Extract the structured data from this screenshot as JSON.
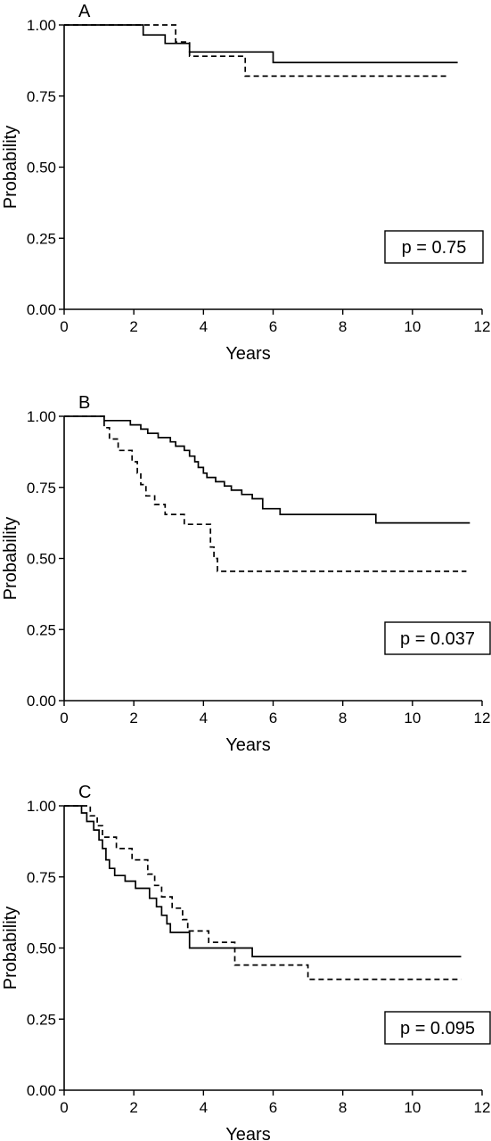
{
  "chart_data": [
    {
      "type": "line",
      "subtype": "step",
      "panel_label": "A",
      "xlabel": "Years",
      "ylabel": "Probability",
      "xlim": [
        0,
        12
      ],
      "ylim": [
        0,
        1
      ],
      "xticks": [
        "0",
        "2",
        "4",
        "6",
        "8",
        "10",
        "12"
      ],
      "yticks": [
        "0.00",
        "0.25",
        "0.50",
        "0.75",
        "1.00"
      ],
      "annotation": "p = 0.75",
      "annotation_placement": "bottom-right",
      "grid": false,
      "series": [
        {
          "line_style": "solid",
          "x": [
            0,
            2.27,
            2.9,
            3.6,
            6.0,
            11.3
          ],
          "y": [
            1.0,
            0.965,
            0.935,
            0.905,
            0.868,
            0.868
          ]
        },
        {
          "line_style": "dashed",
          "x": [
            0,
            3.2,
            3.6,
            5.2,
            11.0
          ],
          "y": [
            1.0,
            0.94,
            0.89,
            0.82,
            0.82
          ]
        }
      ]
    },
    {
      "type": "line",
      "subtype": "step",
      "panel_label": "B",
      "xlabel": "Years",
      "ylabel": "Probability",
      "xlim": [
        0,
        12
      ],
      "ylim": [
        0,
        1
      ],
      "xticks": [
        "0",
        "2",
        "4",
        "6",
        "8",
        "10",
        "12"
      ],
      "yticks": [
        "0.00",
        "0.25",
        "0.50",
        "0.75",
        "1.00"
      ],
      "annotation": "p = 0.037",
      "annotation_placement": "bottom-right",
      "grid": false,
      "series": [
        {
          "line_style": "solid",
          "x": [
            0,
            1.15,
            1.9,
            2.2,
            2.4,
            2.7,
            3.05,
            3.2,
            3.45,
            3.6,
            3.75,
            3.85,
            4.0,
            4.1,
            4.35,
            4.6,
            4.8,
            5.1,
            5.4,
            5.7,
            6.2,
            8.95,
            11.65
          ],
          "y": [
            1.0,
            0.985,
            0.97,
            0.955,
            0.94,
            0.925,
            0.91,
            0.895,
            0.88,
            0.86,
            0.84,
            0.82,
            0.8,
            0.785,
            0.77,
            0.755,
            0.74,
            0.725,
            0.71,
            0.675,
            0.655,
            0.625,
            0.625
          ]
        },
        {
          "line_style": "dashed",
          "x": [
            0,
            1.15,
            1.3,
            1.55,
            1.95,
            2.1,
            2.2,
            2.35,
            2.6,
            2.9,
            3.45,
            4.2,
            4.3,
            4.4,
            11.55
          ],
          "y": [
            1.0,
            0.96,
            0.92,
            0.88,
            0.84,
            0.8,
            0.76,
            0.72,
            0.69,
            0.655,
            0.62,
            0.54,
            0.5,
            0.455,
            0.455
          ]
        }
      ]
    },
    {
      "type": "line",
      "subtype": "step",
      "panel_label": "C",
      "xlabel": "Years",
      "ylabel": "Probability",
      "xlim": [
        0,
        12
      ],
      "ylim": [
        0,
        1
      ],
      "xticks": [
        "0",
        "2",
        "4",
        "6",
        "8",
        "10",
        "12"
      ],
      "yticks": [
        "0.00",
        "0.25",
        "0.50",
        "0.75",
        "1.00"
      ],
      "annotation": "p = 0.095",
      "annotation_placement": "bottom-right",
      "grid": false,
      "series": [
        {
          "line_style": "solid",
          "x": [
            0,
            0.5,
            0.65,
            0.85,
            1.0,
            1.1,
            1.2,
            1.3,
            1.45,
            1.75,
            2.05,
            2.45,
            2.65,
            2.8,
            2.95,
            3.05,
            3.6,
            5.4,
            11.4
          ],
          "y": [
            1.0,
            0.975,
            0.945,
            0.915,
            0.88,
            0.85,
            0.81,
            0.78,
            0.755,
            0.735,
            0.71,
            0.675,
            0.645,
            0.615,
            0.585,
            0.555,
            0.5,
            0.47,
            0.47
          ]
        },
        {
          "line_style": "dashed",
          "x": [
            0,
            0.75,
            0.95,
            1.1,
            1.5,
            1.95,
            2.4,
            2.6,
            2.8,
            3.1,
            3.4,
            3.55,
            4.15,
            4.9,
            7.0,
            11.4
          ],
          "y": [
            1.0,
            0.965,
            0.93,
            0.89,
            0.85,
            0.81,
            0.76,
            0.72,
            0.68,
            0.64,
            0.6,
            0.56,
            0.52,
            0.44,
            0.39,
            0.39
          ]
        }
      ]
    }
  ]
}
